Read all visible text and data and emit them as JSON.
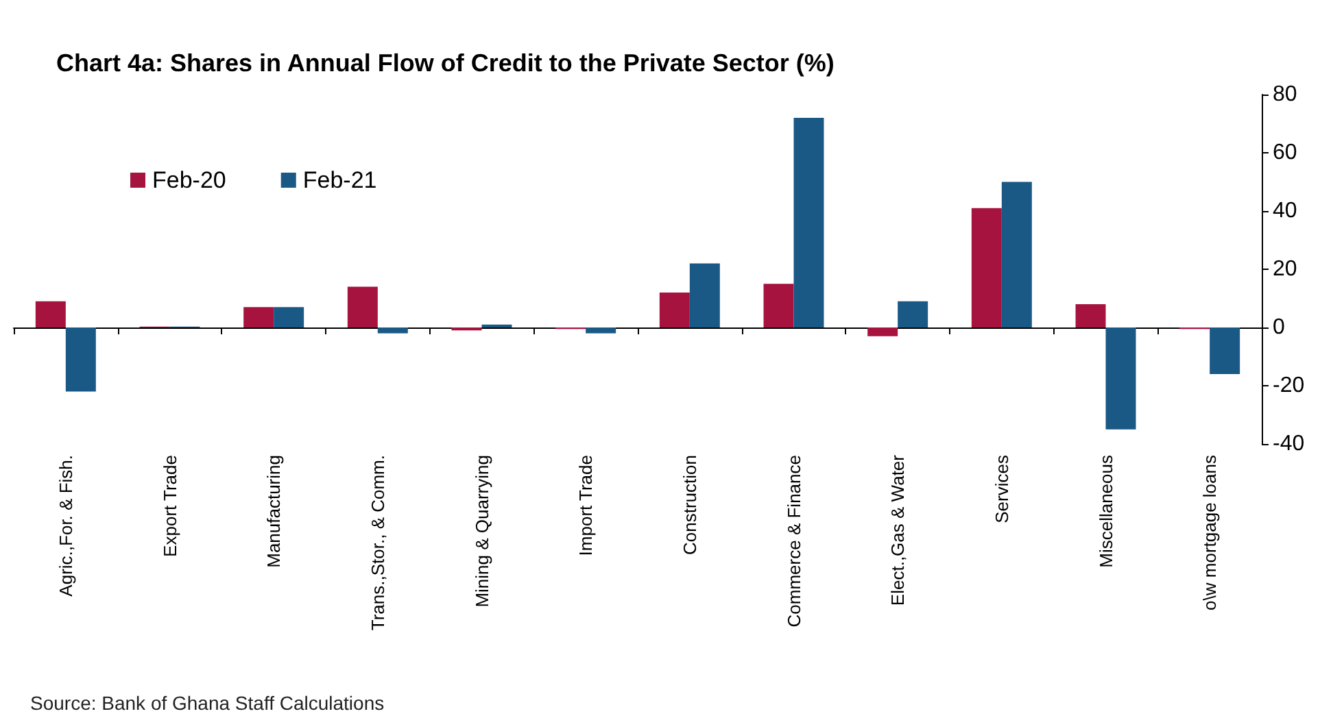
{
  "chart_data": {
    "type": "bar",
    "title": "Chart 4a: Shares in Annual Flow of Credit to the Private Sector (%)",
    "categories": [
      "Agric.,For. & Fish.",
      "Export Trade",
      "Manufacturing",
      "Trans.,Stor., & Comm.",
      "Mining & Quarrying",
      "Import Trade",
      "Construction",
      "Commerce & Finance",
      "Elect.,Gas & Water",
      "Services",
      "Miscellaneous",
      "o\\w mortgage loans"
    ],
    "series": [
      {
        "name": "Feb-20",
        "color": "#a6133f",
        "values": [
          9,
          0.3,
          7,
          14,
          -1,
          -0.5,
          12,
          15,
          -3,
          41,
          8,
          -0.5
        ]
      },
      {
        "name": "Feb-21",
        "color": "#1a5886",
        "values": [
          -22,
          0.3,
          7,
          -2,
          1,
          -2,
          22,
          72,
          9,
          50,
          -35,
          -16
        ]
      }
    ],
    "ylim": [
      -40,
      80
    ],
    "yticks": [
      -40,
      -20,
      0,
      20,
      40,
      60,
      80
    ],
    "legend": "top left",
    "annotations": [
      "Source: Bank of Ghana Staff Calculations"
    ]
  }
}
